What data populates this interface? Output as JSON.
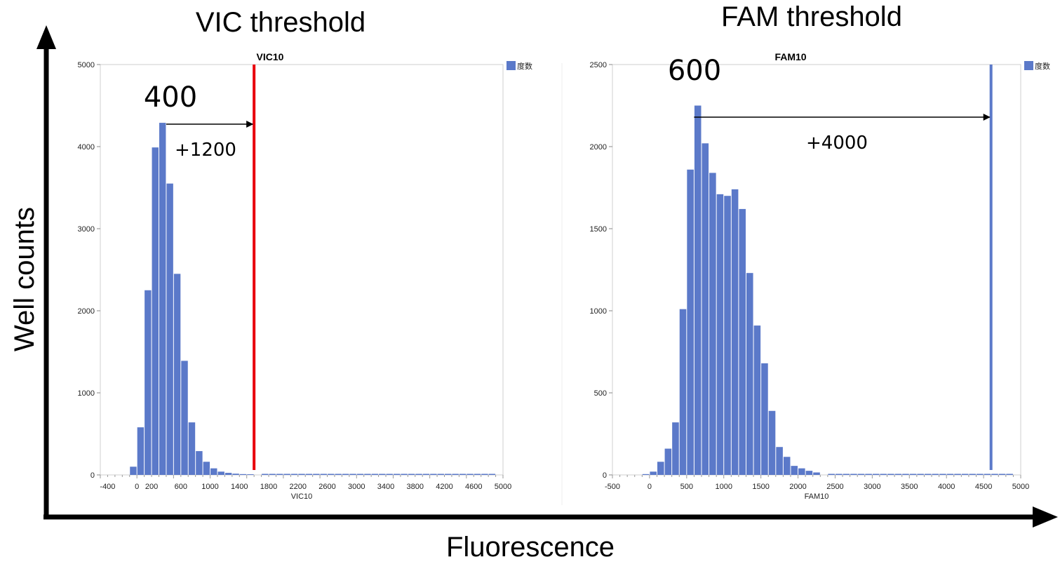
{
  "figure": {
    "left_heading": "VIC threshold",
    "right_heading": "FAM threshold",
    "y_axis_label": "Well counts",
    "x_axis_label": "Fluorescence"
  },
  "colors": {
    "bar": "#5b79c9",
    "vic_threshold": "#e8000b",
    "fam_threshold": "#5b79c9",
    "arrow": "#000000"
  },
  "chart_data": [
    {
      "type": "bar",
      "title": "VIC10",
      "xlabel": "VIC10",
      "ylabel": "",
      "legend": "度数",
      "legend_position": "top-right",
      "bin_width": 100,
      "xlim": [
        -500,
        5000
      ],
      "ylim": [
        0,
        5000
      ],
      "x_ticks": [
        "-400",
        "0",
        "200",
        "600",
        "1000",
        "1400",
        "1800",
        "2200",
        "2600",
        "3000",
        "3400",
        "3800",
        "4200",
        "4600",
        "5000"
      ],
      "y_ticks": [
        "0",
        "1000",
        "2000",
        "3000",
        "4000",
        "5000"
      ],
      "bins_start": [
        -100,
        0,
        100,
        200,
        300,
        400,
        500,
        600,
        700,
        800,
        900,
        1000,
        1100,
        1200,
        1300,
        1400,
        1500
      ],
      "values": [
        100,
        580,
        2250,
        3990,
        4290,
        3550,
        2450,
        1390,
        640,
        290,
        160,
        80,
        40,
        25,
        15,
        10,
        8
      ],
      "threshold": 1600,
      "annotation_peak": "400",
      "annotation_offset": "+1200"
    },
    {
      "type": "bar",
      "title": "FAM10",
      "xlabel": "FAM10",
      "ylabel": "",
      "legend": "度数",
      "legend_position": "top-right",
      "bin_width": 100,
      "xlim": [
        -500,
        5000
      ],
      "ylim": [
        0,
        2500
      ],
      "x_ticks": [
        "-500",
        "0",
        "500",
        "1000",
        "1500",
        "2000",
        "2500",
        "3000",
        "3500",
        "4000",
        "4500",
        "5000"
      ],
      "y_ticks": [
        "0",
        "500",
        "1000",
        "1500",
        "2000",
        "2500"
      ],
      "bins_start": [
        -100,
        0,
        100,
        200,
        300,
        400,
        500,
        600,
        700,
        800,
        900,
        1000,
        1100,
        1200,
        1300,
        1400,
        1500,
        1600,
        1700,
        1800,
        1900,
        2000,
        2100,
        2200
      ],
      "values": [
        5,
        20,
        80,
        160,
        320,
        1010,
        1860,
        2250,
        2020,
        1840,
        1710,
        1700,
        1740,
        1620,
        1230,
        910,
        680,
        390,
        170,
        110,
        55,
        40,
        25,
        15
      ],
      "threshold": 4600,
      "annotation_peak": "600",
      "annotation_offset": "+4000"
    }
  ]
}
